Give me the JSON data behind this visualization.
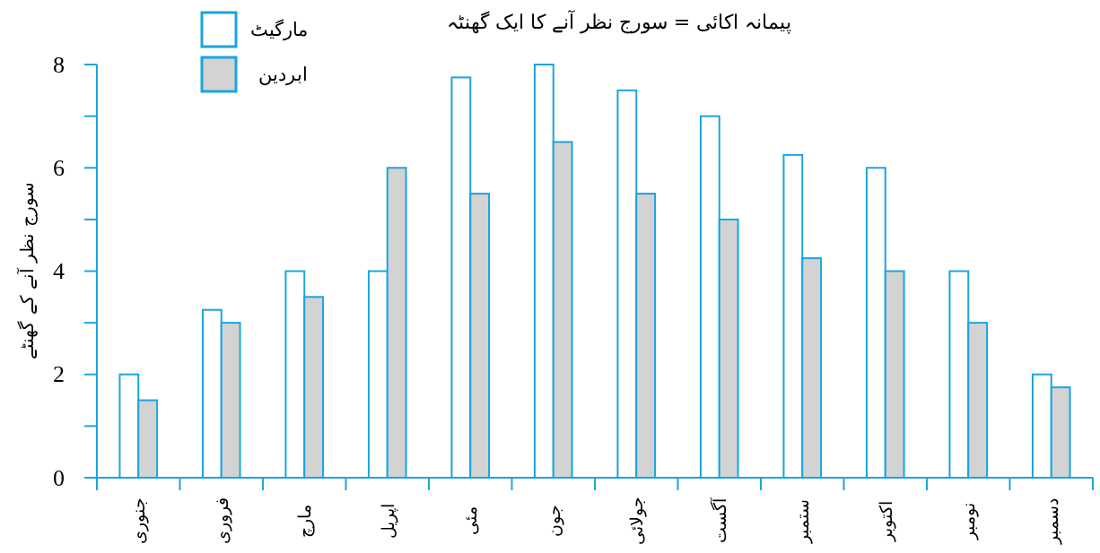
{
  "chart_data": {
    "type": "bar",
    "title": "پیمانہ اکائی = سورج نظر آنے کا ایک گھنٹہ",
    "ylabel": "سورج نظر آنے کے گھنٹے",
    "categories": [
      "جنوری",
      "فروری",
      "مارچ",
      "اپریل",
      "مئی",
      "جون",
      "جولائی",
      "آگست",
      "ستمبر",
      "اکتوبر",
      "نومبر",
      "دسمبر"
    ],
    "series": [
      {
        "name": "مارگیٹ",
        "color": "#ffffff",
        "values": [
          2,
          3.25,
          4,
          4,
          7.75,
          8,
          7.5,
          7,
          6.25,
          6,
          4,
          2
        ]
      },
      {
        "name": "ابردین",
        "color": "#d3d3d4",
        "values": [
          1.5,
          3,
          3.5,
          6,
          5.5,
          6.5,
          5.5,
          5,
          4.25,
          4,
          3,
          1.75
        ]
      }
    ],
    "ylim": [
      0,
      8
    ],
    "yticks": [
      0,
      {
        "value": 1,
        "label": null
      },
      2,
      {
        "value": 3,
        "label": null
      },
      4,
      {
        "value": 5,
        "label": null
      },
      6,
      {
        "value": 7,
        "label": null
      },
      8
    ],
    "legend": "top left"
  }
}
